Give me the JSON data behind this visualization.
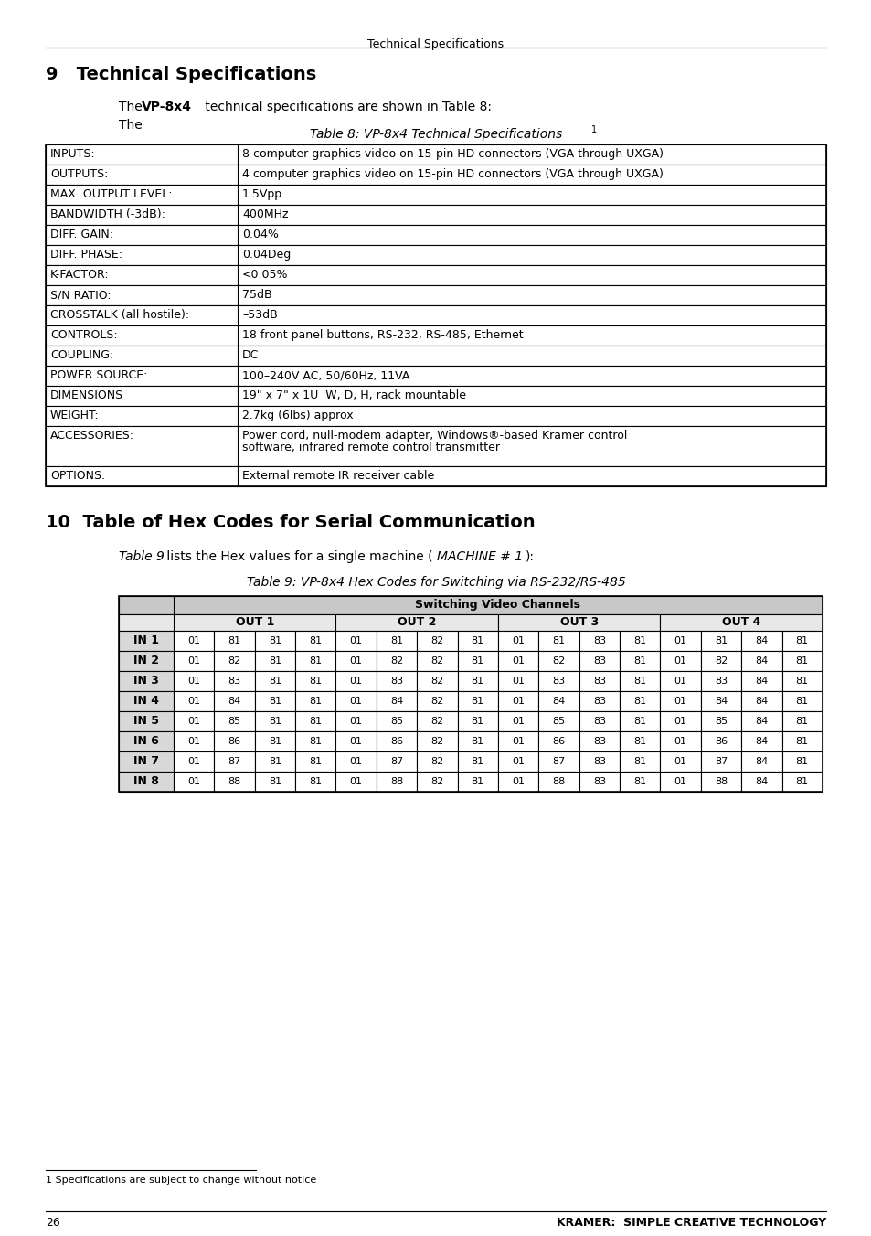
{
  "page_header": "Technical Specifications",
  "section9_title": "9   Technical Specifications",
  "section9_intro": "The {bold}VP-8x4{/bold} technical specifications are shown in Table 8:",
  "table8_title": "Table 8: VP-8x4 Technical Specifications",
  "table8_footnote_superscript": "1",
  "tech_specs": [
    [
      "INPUTS:",
      "8 computer graphics video on 15-pin HD connectors (VGA through UXGA)"
    ],
    [
      "OUTPUTS:",
      "4 computer graphics video on 15-pin HD connectors (VGA through UXGA)"
    ],
    [
      "MAX. OUTPUT LEVEL:",
      "1.5Vpp"
    ],
    [
      "BANDWIDTH (-3dB):",
      "400MHz"
    ],
    [
      "DIFF. GAIN:",
      "0.04%"
    ],
    [
      "DIFF. PHASE:",
      "0.04Deg"
    ],
    [
      "K-FACTOR:",
      "<0.05%"
    ],
    [
      "S/N RATIO:",
      "75dB"
    ],
    [
      "CROSSTALK (all hostile):",
      "–53dB"
    ],
    [
      "CONTROLS:",
      "18 front panel buttons, RS-232, RS-485, Ethernet"
    ],
    [
      "COUPLING:",
      "DC"
    ],
    [
      "POWER SOURCE:",
      "100–240V AC, 50/60Hz, 11VA"
    ],
    [
      "DIMENSIONS",
      "19\" x 7\" x 1U  W, D, H, rack mountable"
    ],
    [
      "WEIGHT:",
      "2.7kg (6lbs) approx"
    ],
    [
      "ACCESSORIES:",
      "Power cord, null-modem adapter, Windows®-based Kramer control\nsoftware, infrared remote control transmitter"
    ],
    [
      "OPTIONS:",
      "External remote IR receiver cable"
    ]
  ],
  "section10_title": "10  Table of Hex Codes for Serial Communication",
  "section10_intro_italic": "Table 9",
  "section10_intro_rest": " lists the Hex values for a single machine (",
  "section10_intro_italic2": "MACHINE # 1",
  "section10_intro_end": "):",
  "table9_title": "Table 9: VP-8x4 Hex Codes for Switching via RS-232/RS-485",
  "hex_header_main": "Switching Video Channels",
  "hex_out_headers": [
    "OUT 1",
    "OUT 2",
    "OUT 3",
    "OUT 4"
  ],
  "hex_in_labels": [
    "IN 1",
    "IN 2",
    "IN 3",
    "IN 4",
    "IN 5",
    "IN 6",
    "IN 7",
    "IN 8"
  ],
  "hex_data": [
    [
      "01",
      "81",
      "81",
      "81",
      "01",
      "81",
      "82",
      "81",
      "01",
      "81",
      "83",
      "81",
      "01",
      "81",
      "84",
      "81"
    ],
    [
      "01",
      "82",
      "81",
      "81",
      "01",
      "82",
      "82",
      "81",
      "01",
      "82",
      "83",
      "81",
      "01",
      "82",
      "84",
      "81"
    ],
    [
      "01",
      "83",
      "81",
      "81",
      "01",
      "83",
      "82",
      "81",
      "01",
      "83",
      "83",
      "81",
      "01",
      "83",
      "84",
      "81"
    ],
    [
      "01",
      "84",
      "81",
      "81",
      "01",
      "84",
      "82",
      "81",
      "01",
      "84",
      "83",
      "81",
      "01",
      "84",
      "84",
      "81"
    ],
    [
      "01",
      "85",
      "81",
      "81",
      "01",
      "85",
      "82",
      "81",
      "01",
      "85",
      "83",
      "81",
      "01",
      "85",
      "84",
      "81"
    ],
    [
      "01",
      "86",
      "81",
      "81",
      "01",
      "86",
      "82",
      "81",
      "01",
      "86",
      "83",
      "81",
      "01",
      "86",
      "84",
      "81"
    ],
    [
      "01",
      "87",
      "81",
      "81",
      "01",
      "87",
      "82",
      "81",
      "01",
      "87",
      "83",
      "81",
      "01",
      "87",
      "84",
      "81"
    ],
    [
      "01",
      "88",
      "81",
      "81",
      "01",
      "88",
      "82",
      "81",
      "01",
      "88",
      "83",
      "81",
      "01",
      "88",
      "84",
      "81"
    ]
  ],
  "footnote_text": "1 Specifications are subject to change without notice",
  "page_number": "26",
  "footer_right": "KRAMER:  SIMPLE CREATIVE TECHNOLOGY",
  "bg_color": "#ffffff",
  "header_color": "#c0c0c0",
  "table_border_color": "#000000",
  "text_color": "#000000",
  "font_size_body": 9,
  "font_size_section": 13,
  "font_size_header": 9
}
